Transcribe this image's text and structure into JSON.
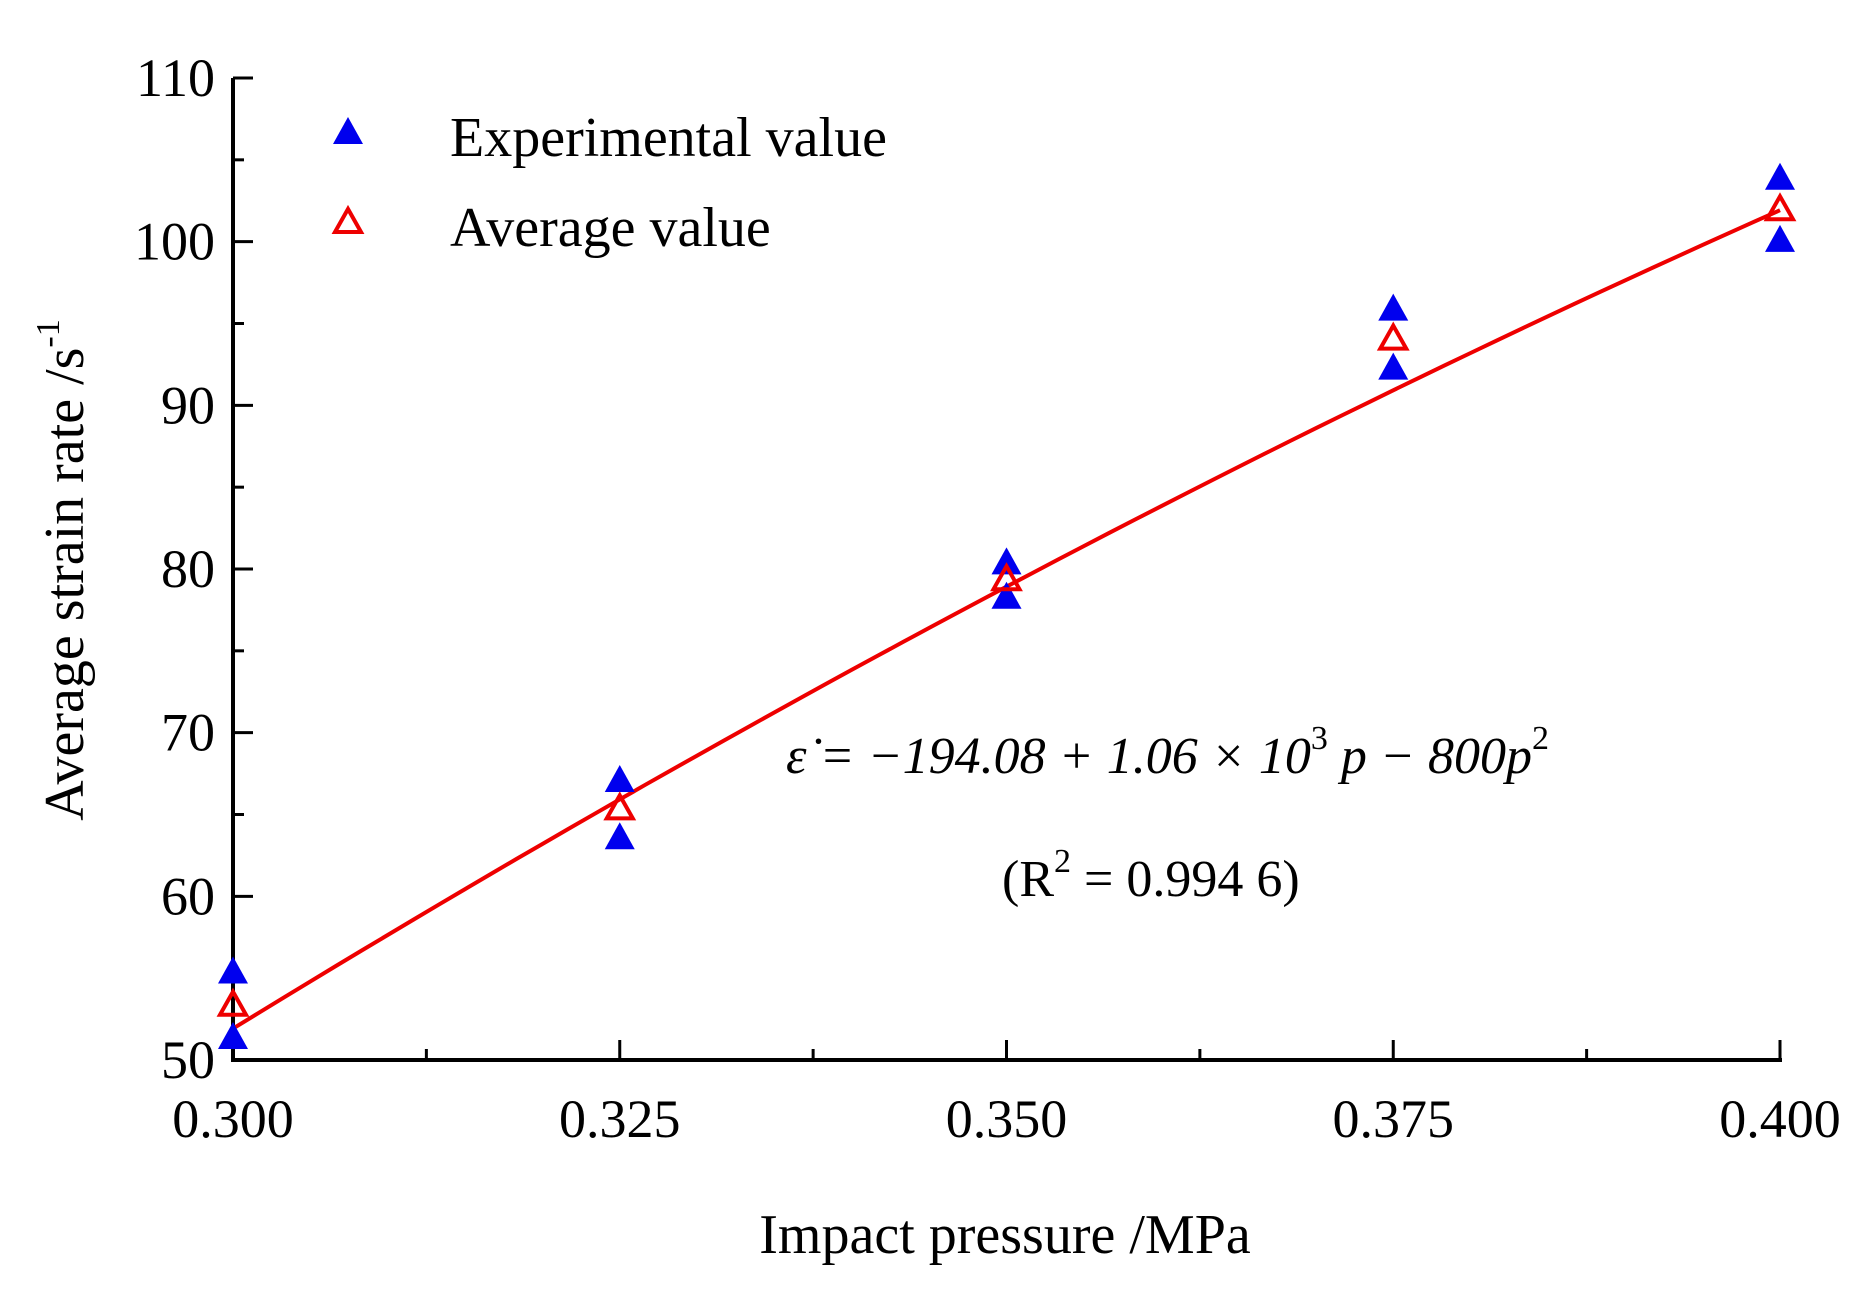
{
  "chart_data": {
    "type": "scatter",
    "xlabel": "Impact pressure /MPa",
    "ylabel": "Average strain rate /s",
    "ylabel_sup": "-1",
    "xlim": [
      0.3,
      0.4
    ],
    "ylim": [
      50,
      110
    ],
    "x_ticks": [
      "0.300",
      "0.325",
      "0.350",
      "0.375",
      "0.400"
    ],
    "x_tick_values": [
      0.3,
      0.325,
      0.35,
      0.375,
      0.4
    ],
    "y_ticks": [
      "50",
      "60",
      "70",
      "80",
      "90",
      "100",
      "110"
    ],
    "y_tick_values": [
      50,
      60,
      70,
      80,
      90,
      100,
      110
    ],
    "grid": false,
    "legend_position": "top-left",
    "series": [
      {
        "name": "Experimental value",
        "marker": "filled-triangle",
        "color": "#0000ee",
        "points": [
          [
            0.3,
            55.3
          ],
          [
            0.3,
            51.3
          ],
          [
            0.325,
            67.0
          ],
          [
            0.325,
            63.5
          ],
          [
            0.35,
            80.3
          ],
          [
            0.35,
            78.2
          ],
          [
            0.375,
            95.8
          ],
          [
            0.375,
            92.2
          ],
          [
            0.4,
            103.8
          ],
          [
            0.4,
            100.0
          ]
        ]
      },
      {
        "name": "Average value",
        "marker": "open-triangle",
        "color": "#ee0000",
        "points": [
          [
            0.3,
            53.3
          ],
          [
            0.325,
            65.3
          ],
          [
            0.35,
            79.3
          ],
          [
            0.375,
            94.0
          ],
          [
            0.4,
            101.9
          ]
        ]
      }
    ],
    "fit_line": {
      "color": "#ee0000",
      "coefficients": {
        "c0": -194.08,
        "c1": 1060,
        "c2": -800
      }
    },
    "annotation": {
      "eq_lhs": "ε̇ = −194.08 + 1.06 × 10",
      "eq_exp1": "3",
      "eq_mid": " p − 800p",
      "eq_exp2": "2",
      "r2_open": "(R",
      "r2_exp": "2",
      "r2_rest": " = 0.994 6)"
    }
  }
}
